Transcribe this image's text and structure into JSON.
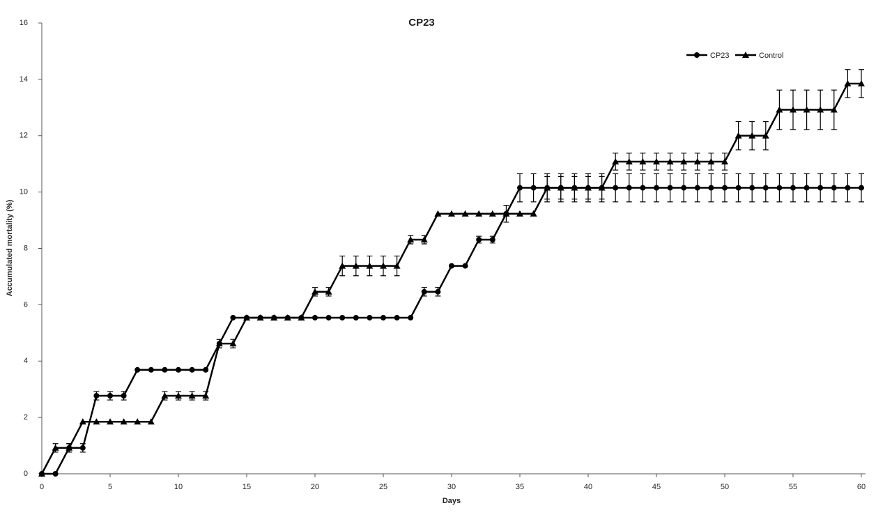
{
  "chart_data": {
    "type": "line",
    "title": "CP23",
    "x_label": "Days",
    "y_label": "Accumulated mortality (%)",
    "x": [
      0,
      1,
      2,
      3,
      4,
      5,
      6,
      7,
      8,
      9,
      10,
      11,
      12,
      13,
      14,
      15,
      16,
      17,
      18,
      19,
      20,
      21,
      22,
      23,
      24,
      25,
      26,
      27,
      28,
      29,
      30,
      31,
      32,
      33,
      34,
      35,
      36,
      37,
      38,
      39,
      40,
      41,
      42,
      43,
      44,
      45,
      46,
      47,
      48,
      49,
      50,
      51,
      52,
      53,
      54,
      55,
      56,
      57,
      58,
      59,
      60
    ],
    "series": [
      {
        "name": "CP23",
        "color": "#000000",
        "marker": "circle",
        "values": [
          0,
          0,
          0.92,
          0.92,
          2.77,
          2.77,
          2.77,
          3.69,
          3.69,
          3.69,
          3.69,
          3.69,
          3.69,
          4.62,
          5.54,
          5.54,
          5.54,
          5.54,
          5.54,
          5.54,
          5.54,
          5.54,
          5.54,
          5.54,
          5.54,
          5.54,
          5.54,
          5.54,
          6.46,
          6.46,
          7.38,
          7.38,
          8.31,
          8.31,
          9.23,
          10.15,
          10.15,
          10.15,
          10.15,
          10.15,
          10.15,
          10.15,
          10.15,
          10.15,
          10.15,
          10.15,
          10.15,
          10.15,
          10.15,
          10.15,
          10.15,
          10.15,
          10.15,
          10.15,
          10.15,
          10.15,
          10.15,
          10.15,
          10.15,
          10.15,
          10.15
        ],
        "errors": [
          null,
          null,
          0.15,
          0.15,
          0.15,
          0.15,
          0.15,
          null,
          null,
          null,
          null,
          null,
          null,
          0.15,
          null,
          null,
          null,
          null,
          null,
          null,
          null,
          null,
          null,
          null,
          null,
          null,
          null,
          null,
          0.15,
          0.15,
          null,
          null,
          0.12,
          0.12,
          0.3,
          0.5,
          0.5,
          0.5,
          0.5,
          0.5,
          0.5,
          0.5,
          0.5,
          0.5,
          0.5,
          0.5,
          0.5,
          0.5,
          0.5,
          0.5,
          0.5,
          0.5,
          0.5,
          0.5,
          0.5,
          0.5,
          0.5,
          0.5,
          0.5,
          0.5,
          0.5
        ]
      },
      {
        "name": "Control",
        "color": "#000000",
        "marker": "triangle",
        "values": [
          0,
          0.92,
          0.92,
          1.85,
          1.85,
          1.85,
          1.85,
          1.85,
          1.85,
          2.77,
          2.77,
          2.77,
          2.77,
          4.62,
          4.62,
          5.54,
          5.54,
          5.54,
          5.54,
          5.54,
          6.46,
          6.46,
          7.38,
          7.38,
          7.38,
          7.38,
          7.38,
          8.31,
          8.31,
          9.23,
          9.23,
          9.23,
          9.23,
          9.23,
          9.23,
          9.23,
          9.23,
          10.15,
          10.15,
          10.15,
          10.15,
          10.15,
          11.08,
          11.08,
          11.08,
          11.08,
          11.08,
          11.08,
          11.08,
          11.08,
          11.08,
          12.0,
          12.0,
          12.0,
          12.92,
          12.92,
          12.92,
          12.92,
          12.92,
          13.85,
          13.85
        ],
        "errors": [
          null,
          0.15,
          0.15,
          null,
          null,
          null,
          null,
          null,
          null,
          0.15,
          0.15,
          0.15,
          0.15,
          0.15,
          0.15,
          null,
          null,
          null,
          null,
          null,
          0.15,
          0.15,
          0.35,
          0.35,
          0.35,
          0.35,
          0.35,
          0.15,
          0.15,
          null,
          null,
          null,
          null,
          null,
          null,
          null,
          null,
          0.4,
          0.4,
          0.4,
          0.4,
          0.4,
          0.3,
          0.3,
          0.3,
          0.3,
          0.3,
          0.3,
          0.3,
          0.3,
          0.3,
          0.5,
          0.5,
          0.5,
          0.7,
          0.7,
          0.7,
          0.7,
          0.7,
          0.5,
          0.5
        ]
      }
    ],
    "xlim": [
      0,
      60
    ],
    "xticks": [
      0,
      5,
      10,
      15,
      20,
      25,
      30,
      35,
      40,
      45,
      50,
      55,
      60
    ],
    "ylim": [
      0,
      16
    ],
    "yticks": [
      0,
      2,
      4,
      6,
      8,
      10,
      12,
      14,
      16
    ],
    "legend": "upper-right"
  }
}
